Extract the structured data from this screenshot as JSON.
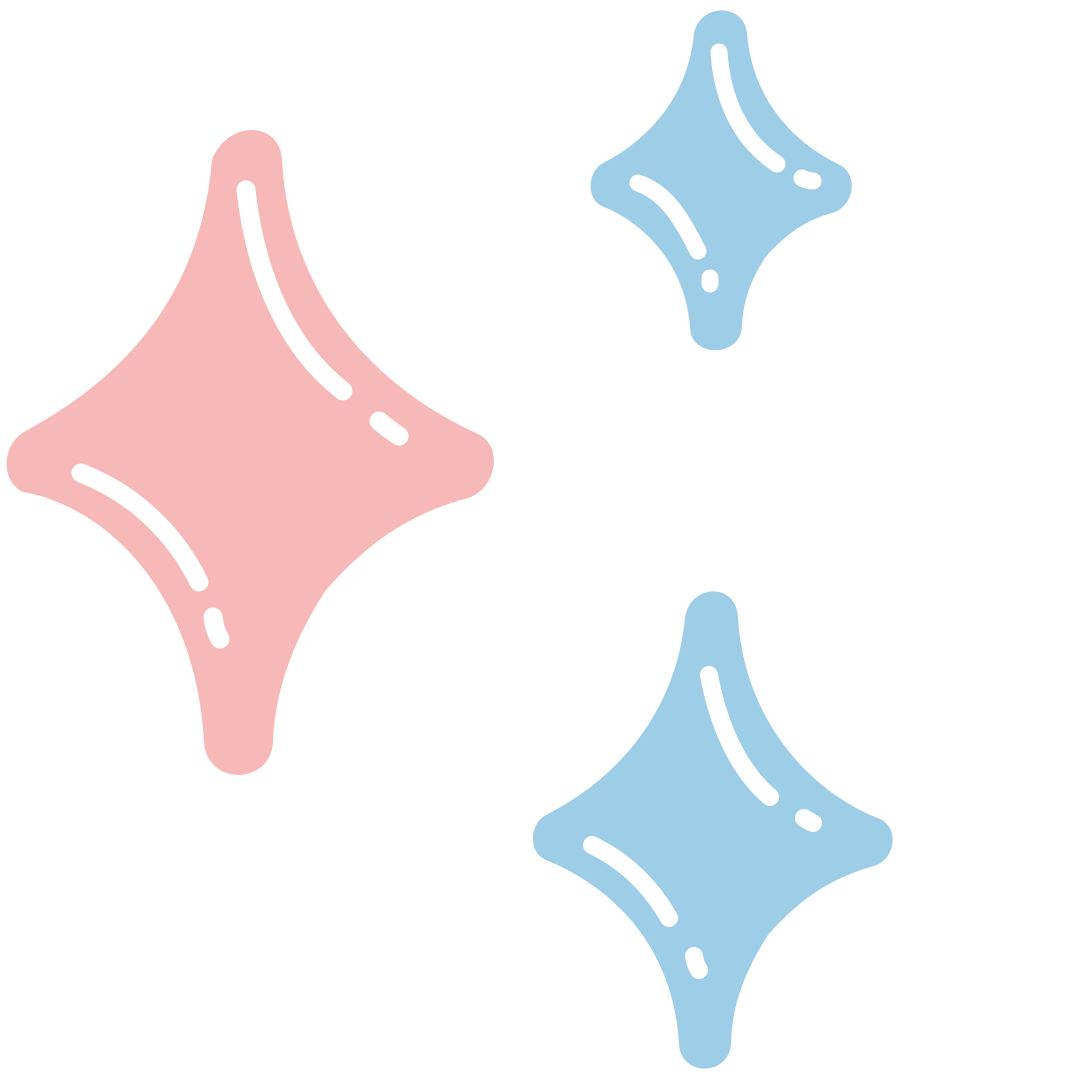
{
  "illustration": {
    "background_color": "#ffffff",
    "highlight_color": "#ffffff",
    "sparkles": [
      {
        "name": "large-pink-sparkle",
        "color": "#f6b9b7"
      },
      {
        "name": "small-blue-sparkle",
        "color": "#9ecde8"
      },
      {
        "name": "medium-blue-sparkle",
        "color": "#9ecde8"
      }
    ]
  }
}
